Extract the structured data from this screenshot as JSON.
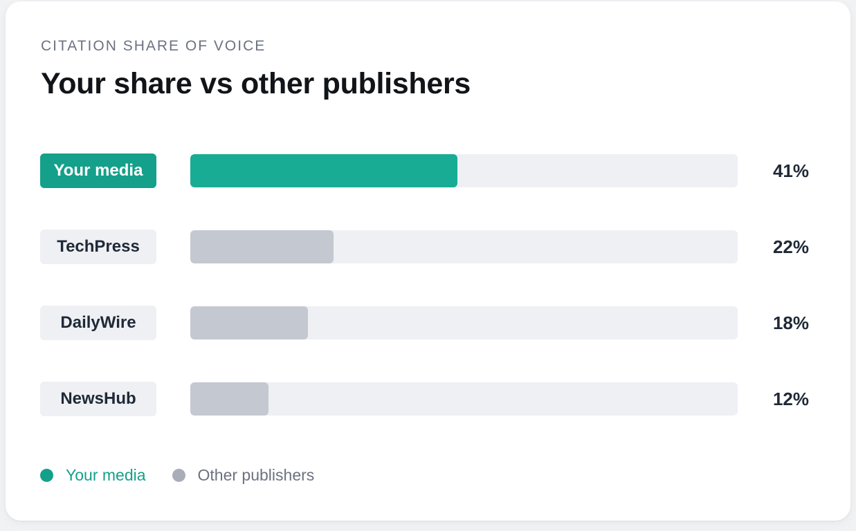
{
  "header": {
    "eyebrow": "CITATION SHARE OF VOICE",
    "title": "Your share vs other publishers"
  },
  "colors": {
    "highlight": "#18ac95",
    "other": "#c4c8d0",
    "track": "#eef0f4",
    "highlight_label": "#14a08a",
    "legend_other_dot": "#a8adb8",
    "legend_other_text": "#6b7280"
  },
  "chart_data": {
    "type": "bar",
    "orientation": "horizontal",
    "title": "Your share vs other publishers",
    "subtitle": "CITATION SHARE OF VOICE",
    "categories": [
      "Your media",
      "TechPress",
      "DailyWire",
      "NewsHub"
    ],
    "values": [
      41,
      22,
      18,
      12
    ],
    "value_labels": [
      "41%",
      "22%",
      "18%",
      "12%"
    ],
    "unit": "%",
    "xlim": [
      0,
      84
    ],
    "highlight_index": 0,
    "legend": [
      {
        "label": "Your media",
        "color": "#14a08a"
      },
      {
        "label": "Other publishers",
        "color": "#a8adb8"
      }
    ],
    "legend_position": "bottom-left",
    "grid": false
  }
}
